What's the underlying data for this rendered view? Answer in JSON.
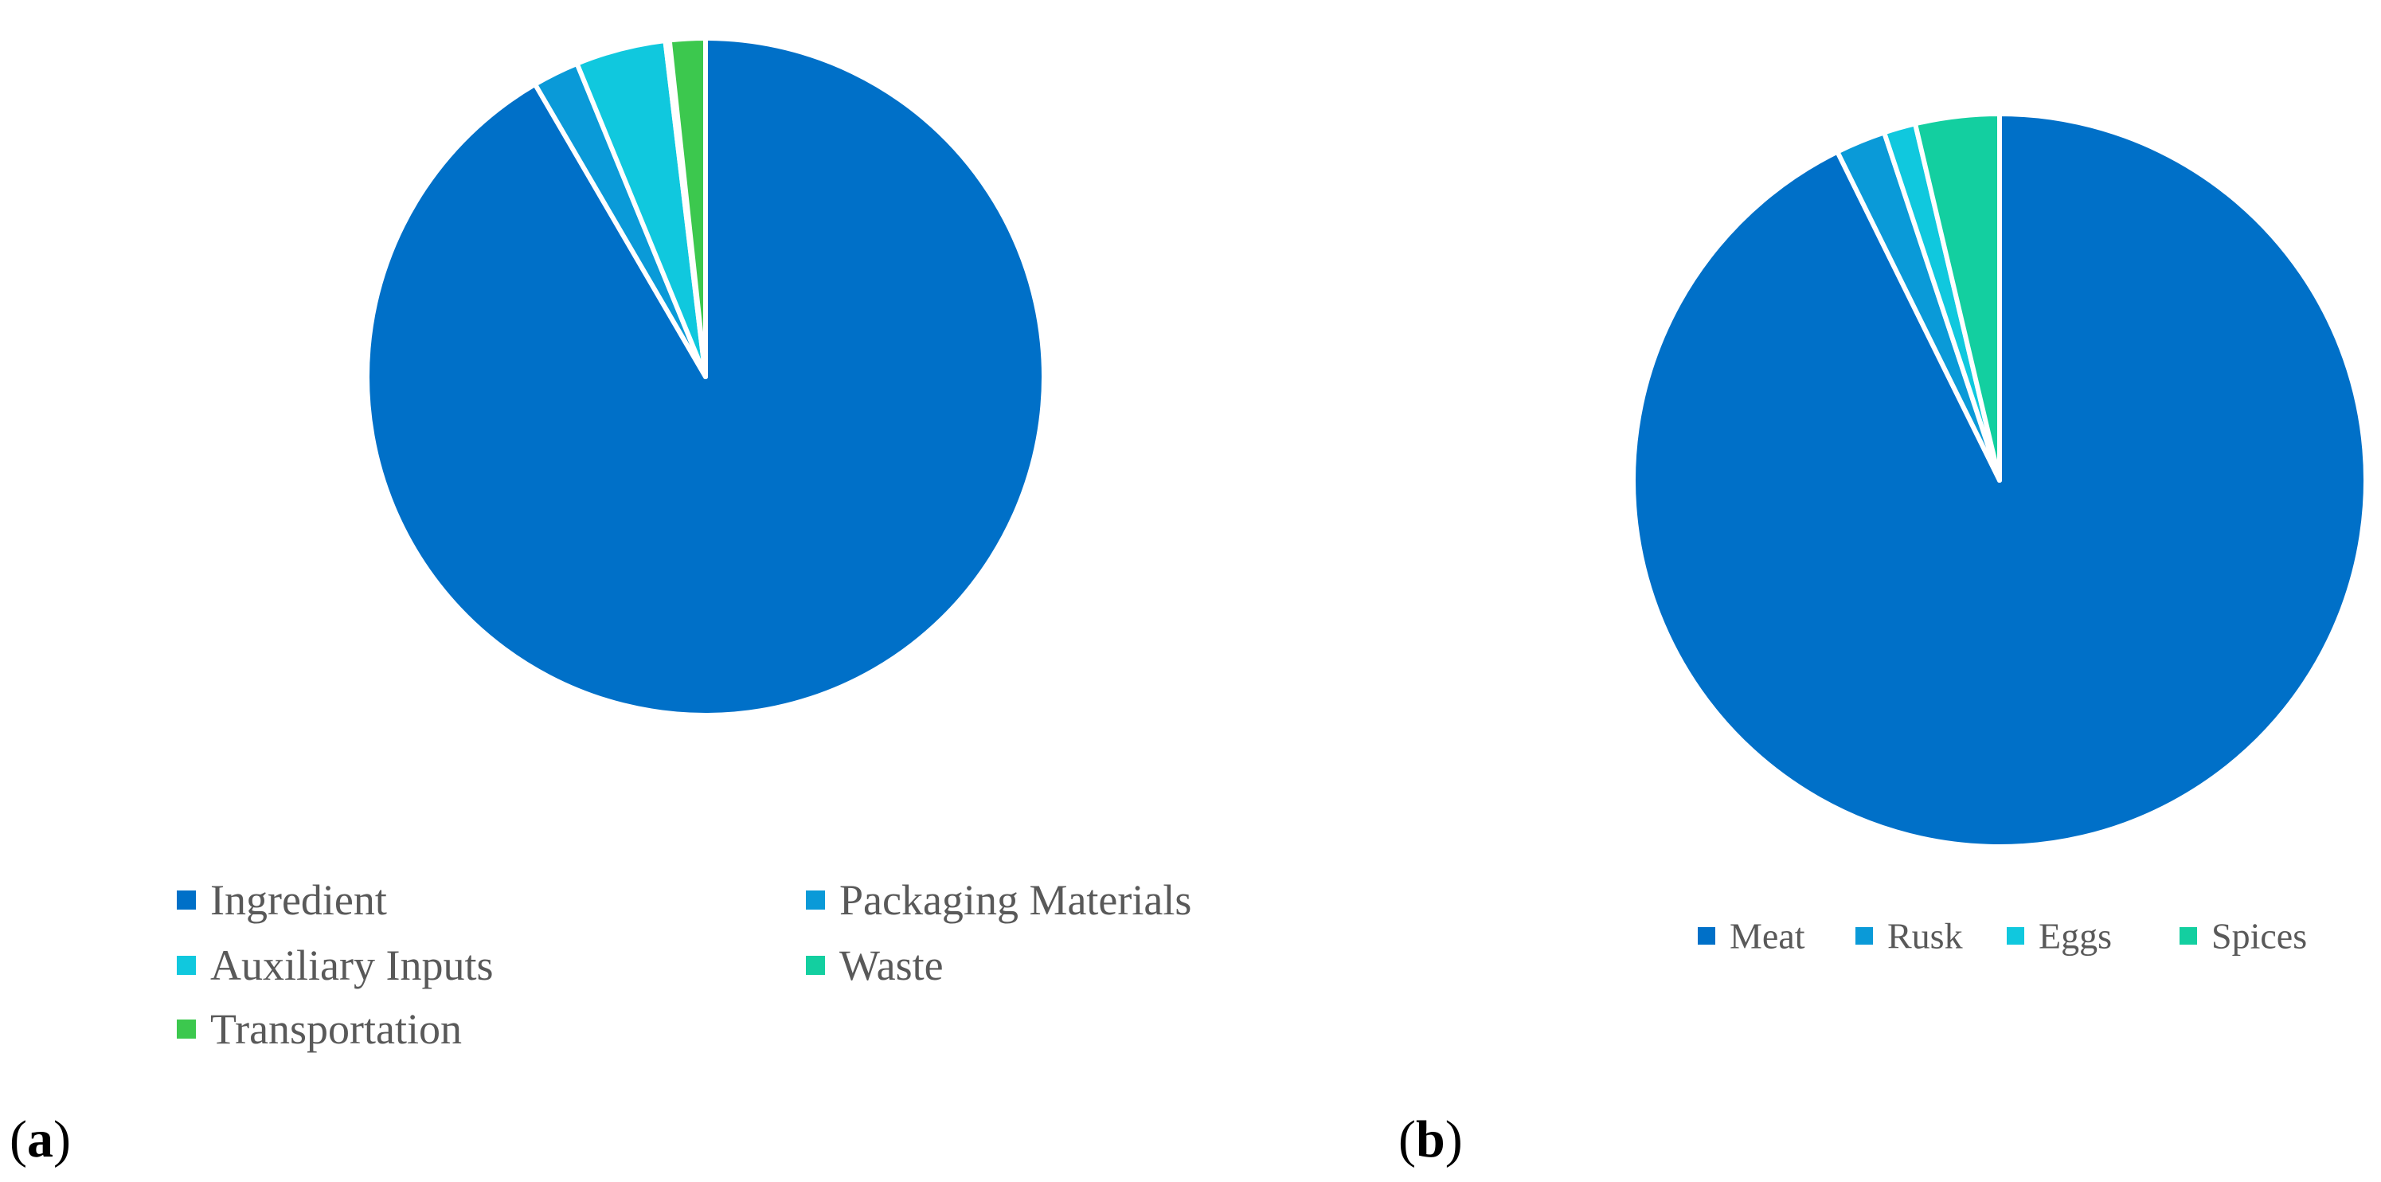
{
  "panels": [
    {
      "id": "a",
      "letter": "a"
    },
    {
      "id": "b",
      "letter": "b"
    }
  ],
  "chart_data": [
    {
      "type": "pie",
      "panel": "a",
      "categories": [
        "Ingredient",
        "Packaging Materials",
        "Auxiliary Inputs",
        "Waste",
        "Transportation"
      ],
      "values": [
        91.6,
        2.2,
        4.3,
        0.2,
        1.7
      ],
      "unit": "%",
      "colors": [
        "#0070C8",
        "#0A9AD8",
        "#10C8DE",
        "#13CFA0",
        "#3CC84E"
      ],
      "start_angle_deg": 0,
      "direction": "clockwise",
      "legend": {
        "placement": "bottom",
        "columns": 2
      }
    },
    {
      "type": "pie",
      "panel": "b",
      "categories": [
        "Meat",
        "Rusk",
        "Eggs",
        "Spices"
      ],
      "values": [
        92.7,
        2.2,
        1.4,
        3.7
      ],
      "unit": "%",
      "colors": [
        "#0070C8",
        "#0A9AD8",
        "#10C8DE",
        "#13CFA0"
      ],
      "start_angle_deg": 0,
      "direction": "clockwise",
      "legend": {
        "placement": "bottom",
        "columns": 4
      }
    }
  ]
}
